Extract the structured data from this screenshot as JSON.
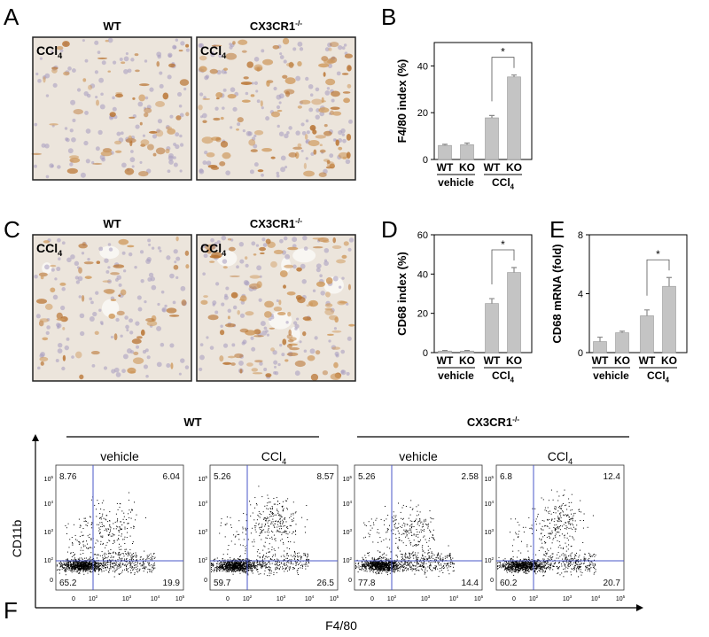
{
  "panel_labels": [
    "A",
    "B",
    "C",
    "D",
    "E",
    "F"
  ],
  "micrographs": [
    {
      "headers": [
        {
          "text": "WT"
        },
        {
          "text": "CX3CR1",
          "sup": "-/-"
        }
      ],
      "label": {
        "text": "CCl",
        "sub": "4"
      }
    },
    {
      "headers": [
        {
          "text": "WT"
        },
        {
          "text": "CX3CR1",
          "sup": "-/-"
        }
      ],
      "label": {
        "text": "CCl",
        "sub": "4"
      }
    }
  ],
  "chart_data": [
    {
      "type": "bar",
      "ylabel": "F4/80 index (%)",
      "categories": [
        "WT",
        "KO",
        "WT",
        "KO"
      ],
      "groups": [
        {
          "text": "vehicle"
        },
        {
          "text": "CCl",
          "sub": "4"
        }
      ],
      "values": [
        6,
        6.3,
        17.8,
        35.3
      ],
      "errors": [
        0.5,
        0.7,
        1,
        0.8
      ],
      "ylim": [
        0,
        50
      ],
      "yticks": [
        0,
        20,
        40
      ],
      "color": "#c4c4c4",
      "significance": "*"
    },
    {
      "type": "bar",
      "ylabel": "CD68 index (%)",
      "categories": [
        "WT",
        "KO",
        "WT",
        "KO"
      ],
      "groups": [
        {
          "text": "vehicle"
        },
        {
          "text": "CCl",
          "sub": "4"
        }
      ],
      "values": [
        0.8,
        0.8,
        25,
        40.8
      ],
      "errors": [
        0.3,
        0.3,
        2.5,
        2.5
      ],
      "ylim": [
        0,
        60
      ],
      "yticks": [
        0,
        20,
        40,
        60
      ],
      "color": "#c4c4c4",
      "significance": "*"
    },
    {
      "type": "bar",
      "ylabel": "CD68 mRNA (fold)",
      "categories": [
        "WT",
        "KO",
        "WT",
        "KO"
      ],
      "groups": [
        {
          "text": "vehicle"
        },
        {
          "text": "CCl",
          "sub": "4"
        }
      ],
      "values": [
        0.75,
        1.35,
        2.5,
        4.5
      ],
      "errors": [
        0.3,
        0.1,
        0.4,
        0.6
      ],
      "ylim": [
        0,
        8
      ],
      "yticks": [
        0,
        4,
        8
      ],
      "color": "#c4c4c4",
      "significance": "*"
    }
  ],
  "flow": {
    "ylabel": "CD11b",
    "xlabel": "F4/80",
    "yticks": [
      {
        "text": "10",
        "sup": "5"
      },
      {
        "text": "10",
        "sup": "4"
      },
      {
        "text": "10",
        "sup": "3"
      },
      {
        "text": "10",
        "sup": "2"
      },
      {
        "text": "0"
      }
    ],
    "xticks": [
      {
        "text": "0"
      },
      {
        "text": "10",
        "sup": "2"
      },
      {
        "text": "10",
        "sup": "3"
      },
      {
        "text": "10",
        "sup": "4"
      },
      {
        "text": "10",
        "sup": "5"
      }
    ],
    "groups": [
      {
        "label": {
          "text": "WT"
        },
        "plots": [
          {
            "condition": {
              "text": "vehicle"
            },
            "quadrants": [
              8.76,
              6.04,
              65.2,
              19.9
            ]
          },
          {
            "condition": {
              "text": "CCl",
              "sub": "4"
            },
            "quadrants": [
              5.26,
              8.57,
              59.7,
              26.5
            ]
          }
        ]
      },
      {
        "label": {
          "text": "CX3CR1",
          "sup": "-/-"
        },
        "plots": [
          {
            "condition": {
              "text": "vehicle"
            },
            "quadrants": [
              5.26,
              2.58,
              77.8,
              14.4
            ]
          },
          {
            "condition": {
              "text": "CCl",
              "sub": "4"
            },
            "quadrants": [
              6.8,
              12.4,
              60.2,
              20.7
            ]
          }
        ]
      }
    ]
  }
}
